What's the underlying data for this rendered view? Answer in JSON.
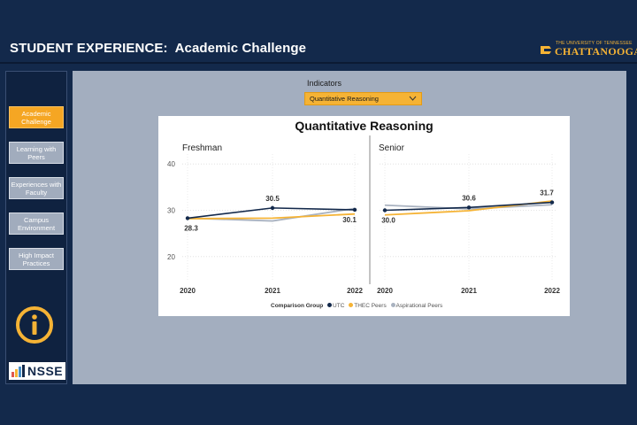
{
  "header": {
    "title": "STUDENT EXPERIENCE:  Academic Challenge"
  },
  "logo": {
    "top_text": "THE UNIVERSITY OF TENNESSEE",
    "main_text": "CHATTANOOGA"
  },
  "sidebar": {
    "items": [
      {
        "label": "Academic Challenge",
        "active": true
      },
      {
        "label": "Learning with Peers",
        "active": false
      },
      {
        "label": "Experiences with Faculty",
        "active": false
      },
      {
        "label": "Campus Environment",
        "active": false
      },
      {
        "label": "High Impact Practices",
        "active": false
      }
    ],
    "info_icon": "info-icon",
    "nsse_logo": "NSSE"
  },
  "filter": {
    "label": "Indicators",
    "selected": "Quantitative Reasoning"
  },
  "colors": {
    "utc": "#13294b",
    "thec": "#f5b335",
    "aspirational": "#a9b2c0",
    "accent": "#f5a623"
  },
  "chart_data": {
    "type": "line",
    "title": "Quantitative Reasoning",
    "ylim": [
      15,
      45
    ],
    "yticks": [
      20,
      30,
      40
    ],
    "x": [
      "2020",
      "2021",
      "2022"
    ],
    "panels": [
      {
        "name": "Freshman",
        "series": [
          {
            "name": "UTC",
            "values": [
              28.3,
              30.5,
              30.1
            ]
          },
          {
            "name": "THEC Peers",
            "values": [
              28.2,
              28.3,
              29.2
            ]
          },
          {
            "name": "Aspirational Peers",
            "values": [
              28.3,
              27.7,
              30.4
            ]
          }
        ],
        "data_labels": [
          {
            "x_index": 0,
            "text": "28.3"
          },
          {
            "x_index": 1,
            "text": "30.5"
          },
          {
            "x_index": 2,
            "text": "30.1"
          }
        ]
      },
      {
        "name": "Senior",
        "series": [
          {
            "name": "UTC",
            "values": [
              30.0,
              30.6,
              31.7
            ]
          },
          {
            "name": "THEC Peers",
            "values": [
              29.0,
              29.9,
              32.0
            ]
          },
          {
            "name": "Aspirational Peers",
            "values": [
              31.1,
              30.3,
              31.2
            ]
          }
        ],
        "data_labels": [
          {
            "x_index": 0,
            "text": "30.0"
          },
          {
            "x_index": 1,
            "text": "30.6"
          },
          {
            "x_index": 2,
            "text": "31.7"
          }
        ]
      }
    ],
    "legend": {
      "title": "Comparison Group",
      "entries": [
        "UTC",
        "THEC Peers",
        "Aspirational Peers"
      ],
      "position": "bottom"
    }
  }
}
